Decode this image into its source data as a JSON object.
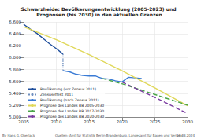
{
  "chart_data": {
    "type": "line",
    "title": "Schwarzheide: Bevölkerungsentwicklung (2005-2023) und Prognosen (bis 2030) in den aktuellen Grenzen",
    "annotations": [
      "By Hans G. Oberlack",
      "Quellen: Amt für Statistik Berlin-Brandenburg, Landesamt für Bauen und Verkehr",
      "10.08.2024"
    ],
    "xlim": [
      2005,
      2030
    ],
    "xticks": [
      2005,
      2010,
      2015,
      2020,
      2025,
      2030
    ],
    "ylim": [
      5000,
      6600
    ],
    "yticks": [
      {
        "value": 5000,
        "label": "5.000"
      },
      {
        "value": 5200,
        "label": "5.200"
      },
      {
        "value": 5400,
        "label": "5.400"
      },
      {
        "value": 5600,
        "label": "5.600"
      },
      {
        "value": 5800,
        "label": "5.800"
      },
      {
        "value": 6000,
        "label": "6.000"
      },
      {
        "value": 6200,
        "label": "6.200"
      },
      {
        "value": 6400,
        "label": "6.400"
      },
      {
        "value": 6600,
        "label": "6.600"
      }
    ],
    "grid": true,
    "legend": "bottom-left",
    "series": [
      {
        "name": "Bevölkerung (vor Zensus 2011)",
        "color": "#1f4e9c",
        "line_style": "solid",
        "x": [
          2005,
          2006,
          2007,
          2008,
          2009,
          2010,
          2011
        ],
        "values": [
          6560,
          6480,
          6410,
          6320,
          6230,
          6150,
          6060
        ]
      },
      {
        "name": "Zensuseffekt 2011",
        "color": "#6f8fbf",
        "line_style": "dotted",
        "x": [
          2011,
          2011
        ],
        "values": [
          6060,
          5780
        ]
      },
      {
        "name": "Bevölkerung (nach Zensus 2011)",
        "color": "#3a7bd5",
        "line_style": "solid",
        "x": [
          2011,
          2012,
          2013,
          2014,
          2015,
          2016,
          2017,
          2018,
          2019,
          2020,
          2021,
          2022,
          2023
        ],
        "values": [
          5780,
          5760,
          5720,
          5700,
          5690,
          5690,
          5650,
          5640,
          5610,
          5590,
          5670,
          5660,
          5650
        ]
      },
      {
        "name": "Prognose des Landes BB 2005-2030",
        "color": "#e0d85a",
        "line_style": "solid",
        "x": [
          2005,
          2010,
          2015,
          2020,
          2025,
          2030
        ],
        "values": [
          6520,
          6300,
          6050,
          5780,
          5490,
          5190
        ]
      },
      {
        "name": "Prognose des Landes BB 2017-2030",
        "color": "#4aa54a",
        "line_style": "dashed",
        "x": [
          2017,
          2020,
          2025,
          2030
        ],
        "values": [
          5650,
          5560,
          5380,
          5200
        ]
      },
      {
        "name": "Prognose des Landes BB 2020-2030",
        "color": "#7a3ca0",
        "line_style": "dashed",
        "x": [
          2020,
          2025,
          2030
        ],
        "values": [
          5590,
          5330,
          5060
        ]
      }
    ]
  }
}
